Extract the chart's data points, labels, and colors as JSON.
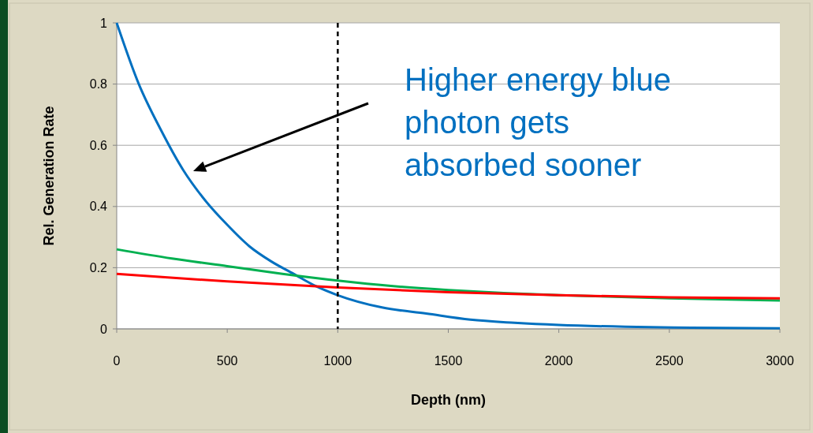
{
  "chart_data": {
    "type": "line",
    "xlabel": "Depth (nm)",
    "ylabel": "Rel. Generation Rate",
    "xlim": [
      0,
      3000
    ],
    "xticks": [
      0,
      500,
      1000,
      1500,
      2000,
      2500,
      3000
    ],
    "ylim": [
      0,
      1
    ],
    "yticks": [
      0,
      0.2,
      0.4,
      0.6,
      0.8,
      1
    ],
    "grid": "y",
    "marker": "none",
    "series": [
      {
        "color": "#0070c0",
        "x": [
          0,
          100,
          200,
          300,
          400,
          500,
          600,
          700,
          800,
          900,
          1000,
          1200,
          1400,
          1600,
          1800,
          2000,
          2300,
          2600,
          3000
        ],
        "values": [
          1,
          0.8,
          0.65,
          0.52,
          0.42,
          0.34,
          0.27,
          0.22,
          0.18,
          0.14,
          0.11,
          0.07,
          0.05,
          0.03,
          0.02,
          0.013,
          0.007,
          0.004,
          0.002
        ]
      },
      {
        "color": "#00b050",
        "x": [
          0,
          250,
          500,
          750,
          1000,
          1250,
          1500,
          1750,
          2000,
          2500,
          3000
        ],
        "values": [
          0.26,
          0.23,
          0.205,
          0.18,
          0.158,
          0.14,
          0.127,
          0.117,
          0.11,
          0.1,
          0.093
        ]
      },
      {
        "color": "#ff0000",
        "x": [
          0,
          500,
          1000,
          1500,
          2000,
          2500,
          3000
        ],
        "values": [
          0.18,
          0.155,
          0.135,
          0.12,
          0.11,
          0.103,
          0.1
        ]
      }
    ],
    "ref_lines": [
      {
        "axis": "x",
        "value": 1000,
        "color": "#000000",
        "line_style": "dashed"
      }
    ],
    "annotations": [
      "Higher energy blue\nphoton gets\nabsorbed sooner"
    ]
  }
}
